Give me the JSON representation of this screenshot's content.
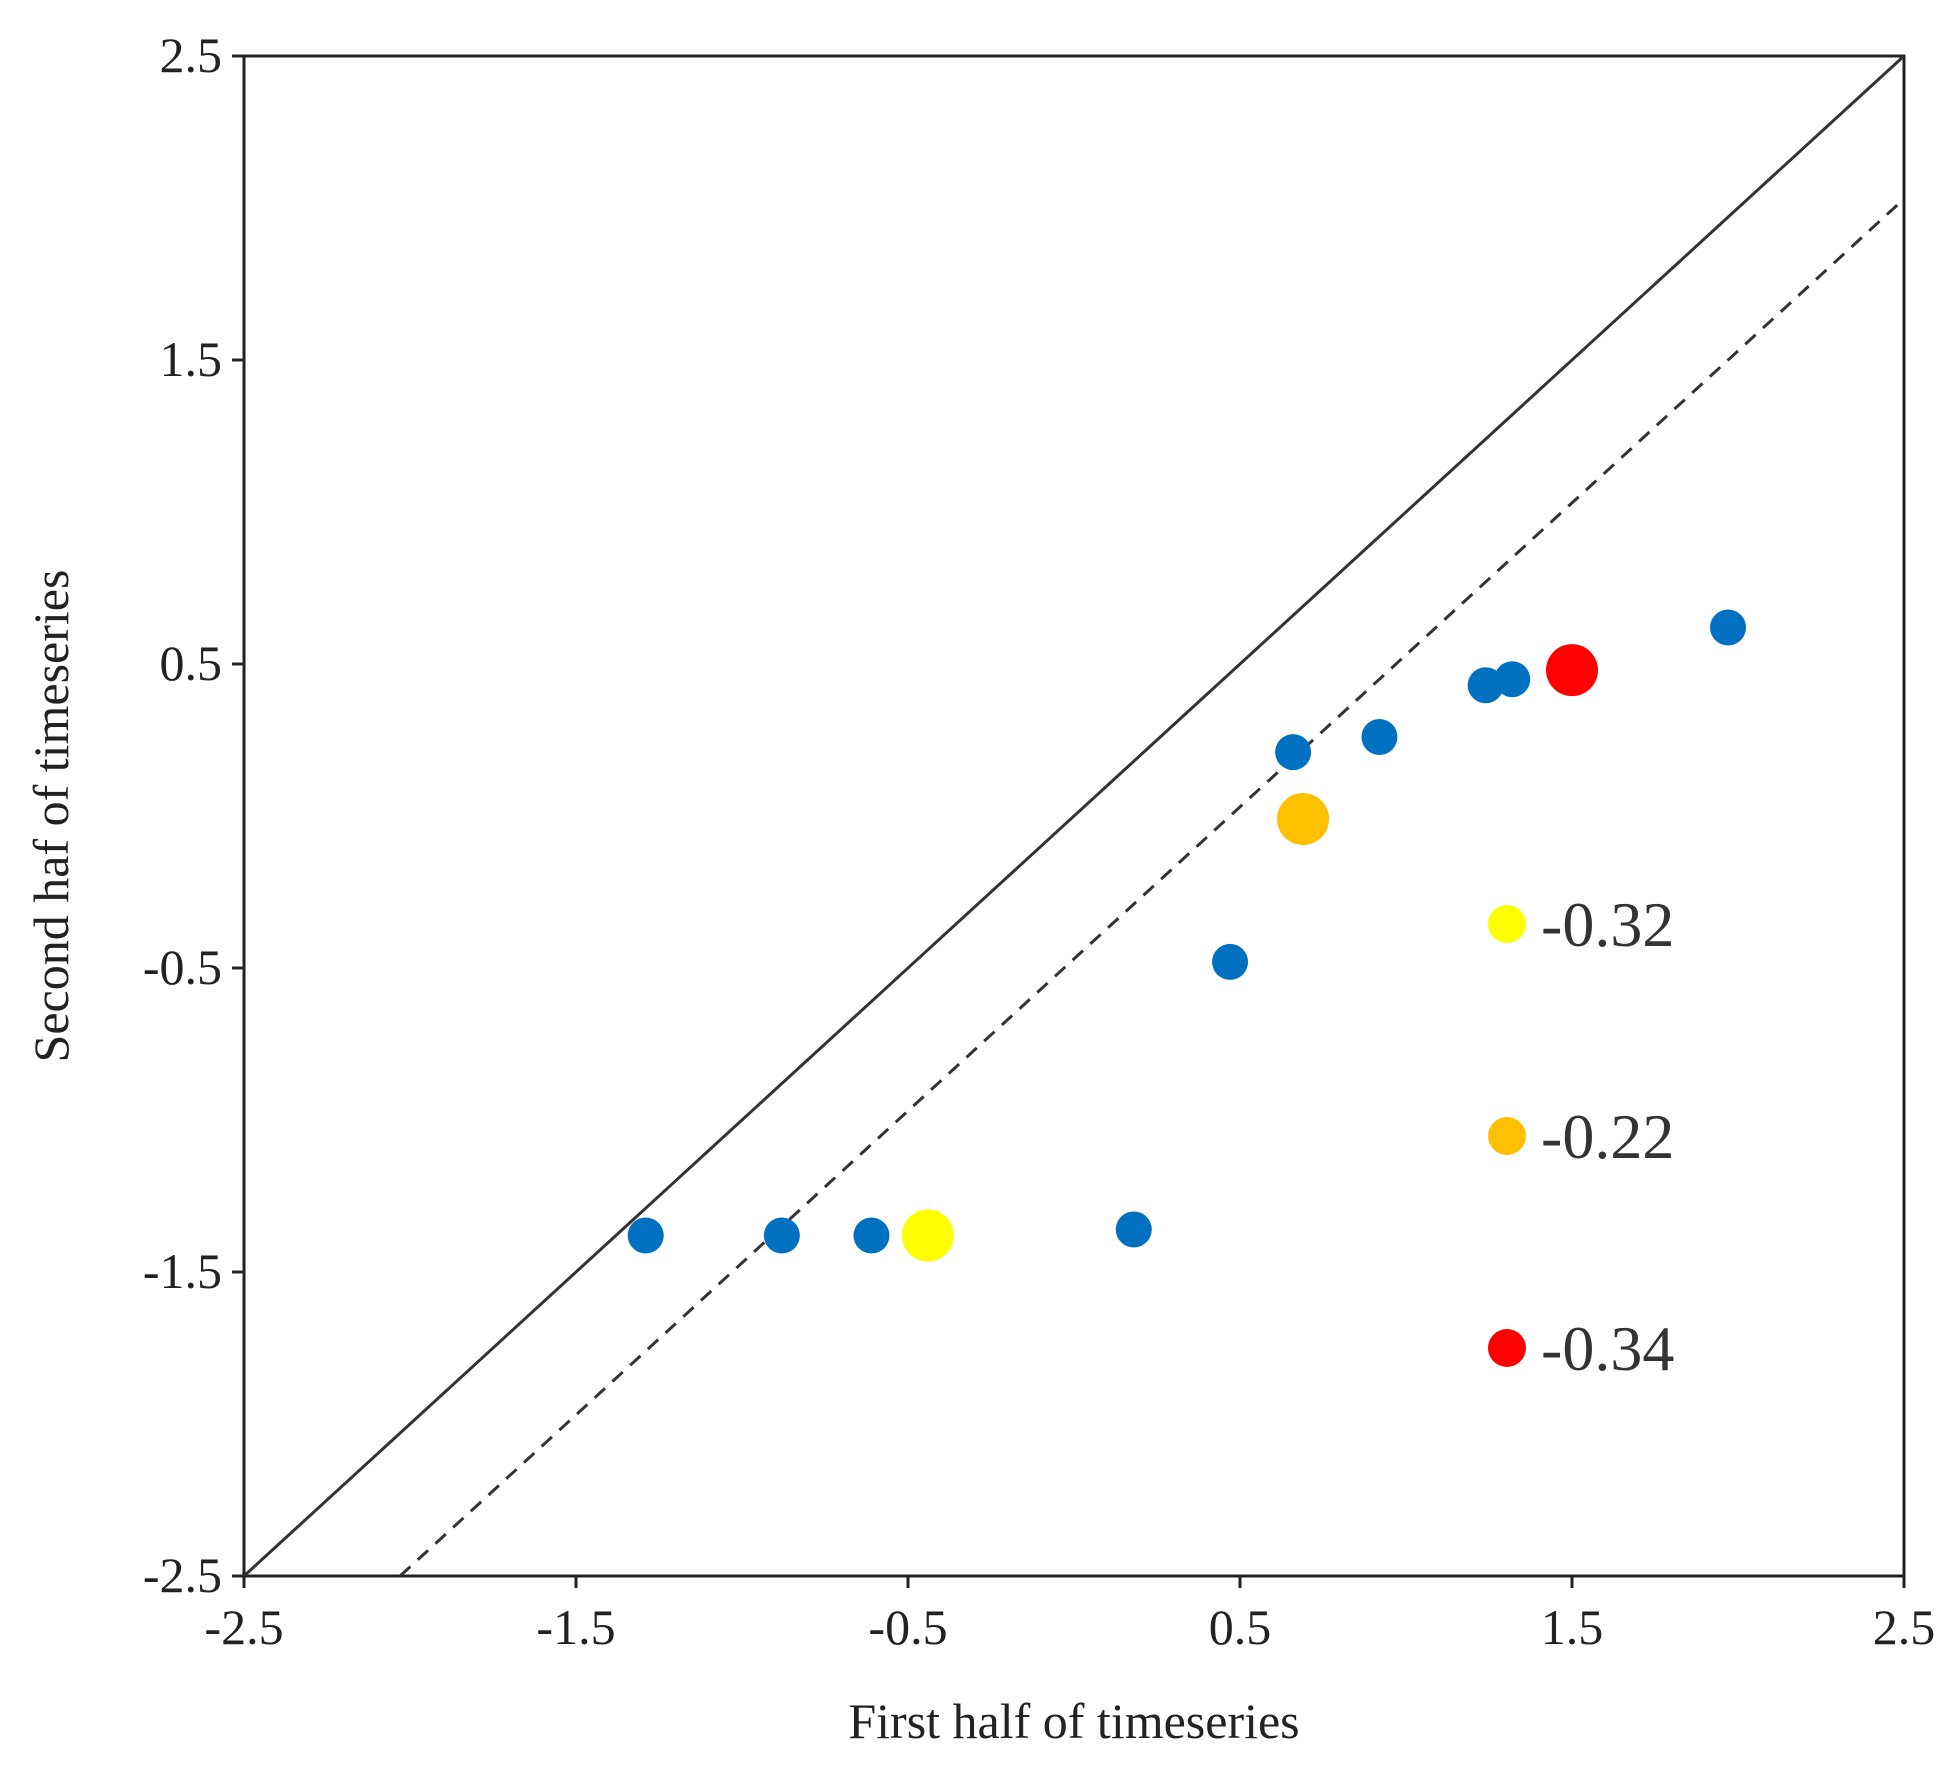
{
  "chart_data": {
    "type": "scatter",
    "title": "",
    "xlabel": "First half of timeseries",
    "ylabel": "Second haf of timeseries",
    "xlim": [
      -2.5,
      2.5
    ],
    "ylim": [
      -2.5,
      2.5
    ],
    "xticks": [
      -2.5,
      -1.5,
      -0.5,
      0.5,
      1.5,
      2.5
    ],
    "yticks": [
      -2.5,
      -1.5,
      -0.5,
      0.5,
      1.5,
      2.5
    ],
    "xtick_labels": [
      "-2.5",
      "-1.5",
      "-0.5",
      "0.5",
      "1.5",
      "2.5"
    ],
    "ytick_labels": [
      "-2.5",
      "-1.5",
      "-0.5",
      "0.5",
      "1.5",
      "2.5"
    ],
    "grid": false,
    "reference_lines": [
      {
        "style": "solid",
        "color": "#333333",
        "slope": 1,
        "intercept": 0
      },
      {
        "style": "dashed",
        "color": "#333333",
        "slope": 1,
        "intercept": -0.47
      }
    ],
    "series": [
      {
        "color": "#0070C0",
        "points": [
          {
            "x": -1.29,
            "y": -1.38
          },
          {
            "x": -0.88,
            "y": -1.38
          },
          {
            "x": -0.61,
            "y": -1.38
          },
          {
            "x": 0.18,
            "y": -1.36
          },
          {
            "x": 0.47,
            "y": -0.48
          },
          {
            "x": 0.66,
            "y": 0.21
          },
          {
            "x": 0.92,
            "y": 0.26
          },
          {
            "x": 1.24,
            "y": 0.43
          },
          {
            "x": 1.32,
            "y": 0.45
          },
          {
            "x": 1.97,
            "y": 0.62
          }
        ]
      },
      {
        "color": "#FFFF00",
        "size": "large",
        "points": [
          {
            "x": -0.44,
            "y": -1.38
          }
        ]
      },
      {
        "color": "#FFC000",
        "size": "large",
        "points": [
          {
            "x": 0.69,
            "y": -0.01
          }
        ]
      },
      {
        "color": "#FF0000",
        "size": "large",
        "points": [
          {
            "x": 1.5,
            "y": 0.48
          }
        ]
      }
    ],
    "legend": {
      "placement": "lower-right inside plot",
      "entries": [
        {
          "label": "-0.32",
          "color": "#FFFF00"
        },
        {
          "label": "-0.22",
          "color": "#FFC000"
        },
        {
          "label": "-0.34",
          "color": "#FF0000"
        }
      ]
    }
  }
}
